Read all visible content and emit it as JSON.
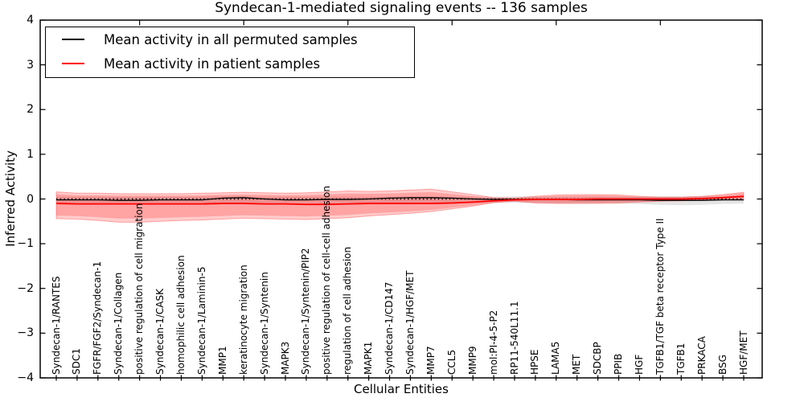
{
  "title": "Syndecan-1-mediated signaling events -- 136 samples",
  "xlabel": "Cellular Entities",
  "ylabel": "Inferred Activity",
  "legend": {
    "items": [
      {
        "label": "Mean activity in all permuted samples",
        "color": "#000000"
      },
      {
        "label": "Mean activity in patient samples",
        "color": "#ff0000"
      }
    ]
  },
  "y_ticks": {
    "labels": [
      "4",
      "3",
      "2",
      "1",
      "0",
      "−1",
      "−2",
      "−3",
      "−4"
    ],
    "values": [
      4,
      3,
      2,
      1,
      0,
      -1,
      -2,
      -3,
      -4
    ]
  },
  "colors": {
    "permuted_line": "#000000",
    "patient_line": "#ff0000",
    "patient_band_fill": "rgba(255,0,0,0.20)",
    "patient_band_edge": "rgba(255,0,0,0.30)",
    "permuted_band_fill": "rgba(120,120,120,0.20)",
    "zero_line": "#000000",
    "frame": "#000000"
  },
  "chart_data": {
    "type": "line",
    "title": "Syndecan-1-mediated signaling events -- 136 samples",
    "xlabel": "Cellular Entities",
    "ylabel": "Inferred Activity",
    "ylim": [
      -4,
      4
    ],
    "grid": false,
    "legend_position": "upper left",
    "categories": [
      "Syndecan-1/RANTES",
      "SDC1",
      "FGFR/FGF2/Syndecan-1",
      "Syndecan-1/Collagen",
      "positive regulation of cell migration",
      "Syndecan-1/CASK",
      "homophilic cell adhesion",
      "Syndecan-1/Laminin-5",
      "MMP1",
      "keratinocyte migration",
      "Syndecan-1/Syntenin",
      "MAPK3",
      "Syndecan-1/Syntenin/PIP2",
      "positive regulation of cell-cell adhesion",
      "regulation of cell adhesion",
      "MAPK1",
      "Syndecan-1/CD147",
      "Syndecan-1/HGF/MET",
      "MMP7",
      "CCL5",
      "MMP9",
      "mol:PI-4-5-P2",
      "RP11-540L11.1",
      "HPSE",
      "LAMA5",
      "MET",
      "SDCBP",
      "PPIB",
      "HGF",
      "TGFB1/TGF beta receptor Type II",
      "TGFB1",
      "PRKACA",
      "BSG",
      "HGF/MET"
    ],
    "series": [
      {
        "name": "Mean activity in all permuted samples",
        "color": "#000000",
        "style": "solid",
        "values": [
          -0.02,
          -0.02,
          -0.02,
          -0.03,
          -0.03,
          -0.02,
          -0.02,
          -0.02,
          0.02,
          0.03,
          0.0,
          -0.02,
          -0.02,
          -0.01,
          -0.01,
          0.0,
          0.02,
          0.03,
          0.03,
          0.02,
          0.0,
          -0.01,
          -0.01,
          -0.01,
          -0.01,
          -0.02,
          -0.02,
          -0.02,
          -0.02,
          -0.03,
          -0.03,
          -0.03,
          -0.02,
          -0.02
        ]
      },
      {
        "name": "Mean activity in patient samples",
        "color": "#ff0000",
        "style": "solid",
        "values": [
          -0.1,
          -0.11,
          -0.11,
          -0.11,
          -0.11,
          -0.11,
          -0.11,
          -0.11,
          -0.1,
          -0.1,
          -0.11,
          -0.11,
          -0.12,
          -0.12,
          -0.11,
          -0.1,
          -0.1,
          -0.1,
          -0.1,
          -0.09,
          -0.07,
          -0.04,
          -0.02,
          -0.01,
          -0.01,
          -0.01,
          0.0,
          0.0,
          0.0,
          0.0,
          0.0,
          0.01,
          0.03,
          0.06
        ]
      },
      {
        "name": "zero reference",
        "color": "#000000",
        "style": "dotted",
        "constant": 0
      }
    ],
    "bands": [
      {
        "name": "patient band",
        "upper": [
          0.16,
          0.13,
          0.13,
          0.12,
          0.12,
          0.12,
          0.12,
          0.13,
          0.14,
          0.15,
          0.14,
          0.13,
          0.14,
          0.16,
          0.18,
          0.17,
          0.18,
          0.2,
          0.22,
          0.16,
          0.1,
          0.03,
          0.02,
          0.06,
          0.09,
          0.1,
          0.1,
          0.09,
          0.06,
          0.04,
          0.04,
          0.06,
          0.1,
          0.15
        ],
        "lower": [
          -0.44,
          -0.45,
          -0.48,
          -0.52,
          -0.52,
          -0.5,
          -0.48,
          -0.47,
          -0.45,
          -0.43,
          -0.44,
          -0.45,
          -0.46,
          -0.44,
          -0.42,
          -0.38,
          -0.35,
          -0.32,
          -0.28,
          -0.22,
          -0.16,
          -0.08,
          -0.05,
          -0.09,
          -0.1,
          -0.1,
          -0.1,
          -0.09,
          -0.07,
          -0.05,
          -0.04,
          -0.03,
          -0.02,
          0.0
        ]
      },
      {
        "name": "permuted band",
        "upper": [
          0.05,
          0.05,
          0.05,
          0.05,
          0.05,
          0.05,
          0.05,
          0.05,
          0.06,
          0.06,
          0.05,
          0.05,
          0.05,
          0.05,
          0.05,
          0.05,
          0.05,
          0.05,
          0.05,
          0.05,
          0.05,
          0.05,
          0.06,
          0.05,
          0.05,
          0.05,
          0.05,
          0.05,
          0.05,
          0.06,
          0.06,
          0.06,
          0.05,
          0.05
        ],
        "lower": [
          -0.09,
          -0.09,
          -0.09,
          -0.09,
          -0.09,
          -0.09,
          -0.09,
          -0.09,
          -0.08,
          -0.08,
          -0.09,
          -0.09,
          -0.09,
          -0.09,
          -0.09,
          -0.09,
          -0.09,
          -0.09,
          -0.09,
          -0.09,
          -0.09,
          -0.09,
          -0.08,
          -0.09,
          -0.1,
          -0.1,
          -0.1,
          -0.1,
          -0.11,
          -0.13,
          -0.14,
          -0.13,
          -0.11,
          -0.1
        ]
      }
    ]
  }
}
